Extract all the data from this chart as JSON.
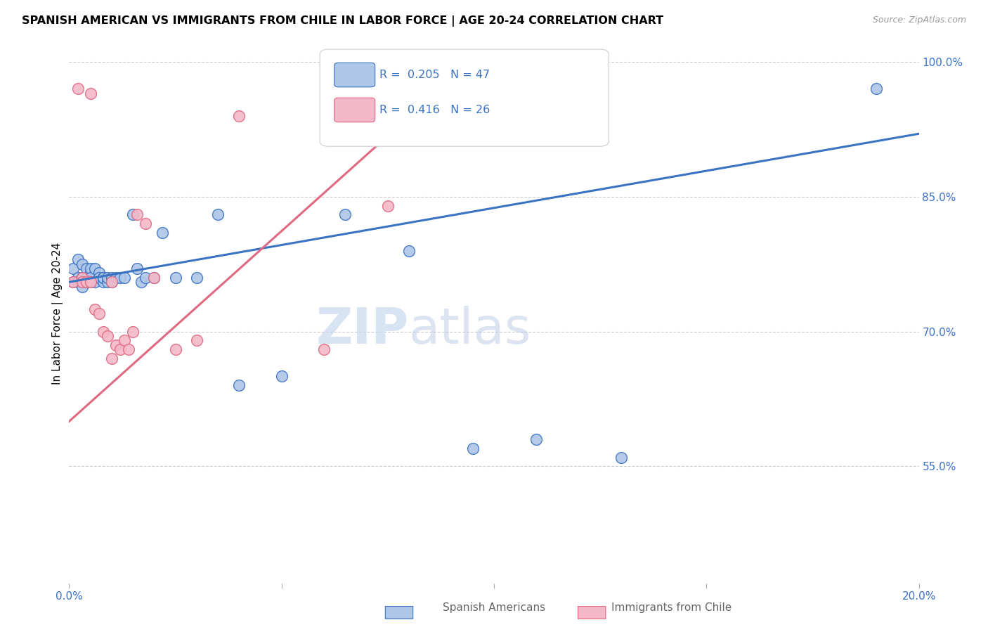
{
  "title": "SPANISH AMERICAN VS IMMIGRANTS FROM CHILE IN LABOR FORCE | AGE 20-24 CORRELATION CHART",
  "source": "Source: ZipAtlas.com",
  "ylabel": "In Labor Force | Age 20-24",
  "xlim": [
    0.0,
    0.2
  ],
  "ylim": [
    0.42,
    1.02
  ],
  "xticks": [
    0.0,
    0.05,
    0.1,
    0.15,
    0.2
  ],
  "yticks": [
    0.55,
    0.7,
    0.85,
    1.0
  ],
  "xticklabels": [
    "0.0%",
    "",
    "",
    "",
    "20.0%"
  ],
  "yticklabels": [
    "55.0%",
    "70.0%",
    "85.0%",
    "100.0%"
  ],
  "blue_R": 0.205,
  "blue_N": 47,
  "pink_R": 0.416,
  "pink_N": 26,
  "blue_color": "#aec6e8",
  "pink_color": "#f4b8c8",
  "blue_line_color": "#3a72c4",
  "pink_line_color": "#e06880",
  "watermark_zip": "ZIP",
  "watermark_atlas": "atlas",
  "blue_scatter_x": [
    0.001,
    0.001,
    0.002,
    0.002,
    0.002,
    0.003,
    0.003,
    0.003,
    0.003,
    0.004,
    0.004,
    0.004,
    0.005,
    0.005,
    0.005,
    0.005,
    0.006,
    0.006,
    0.007,
    0.007,
    0.008,
    0.008,
    0.008,
    0.009,
    0.009,
    0.01,
    0.01,
    0.011,
    0.012,
    0.013,
    0.015,
    0.016,
    0.017,
    0.018,
    0.02,
    0.022,
    0.025,
    0.03,
    0.035,
    0.04,
    0.05,
    0.065,
    0.08,
    0.095,
    0.11,
    0.13,
    0.19
  ],
  "blue_scatter_y": [
    0.755,
    0.77,
    0.76,
    0.755,
    0.78,
    0.76,
    0.775,
    0.76,
    0.75,
    0.755,
    0.77,
    0.76,
    0.765,
    0.77,
    0.755,
    0.76,
    0.755,
    0.77,
    0.765,
    0.76,
    0.755,
    0.76,
    0.76,
    0.755,
    0.76,
    0.76,
    0.755,
    0.76,
    0.76,
    0.76,
    0.83,
    0.77,
    0.755,
    0.76,
    0.76,
    0.81,
    0.76,
    0.76,
    0.83,
    0.64,
    0.65,
    0.83,
    0.79,
    0.57,
    0.58,
    0.56,
    0.97
  ],
  "pink_scatter_x": [
    0.001,
    0.002,
    0.003,
    0.003,
    0.004,
    0.005,
    0.005,
    0.006,
    0.007,
    0.008,
    0.009,
    0.01,
    0.01,
    0.011,
    0.012,
    0.013,
    0.014,
    0.015,
    0.016,
    0.018,
    0.02,
    0.025,
    0.03,
    0.04,
    0.06,
    0.075
  ],
  "pink_scatter_y": [
    0.755,
    0.97,
    0.76,
    0.755,
    0.755,
    0.755,
    0.965,
    0.725,
    0.72,
    0.7,
    0.695,
    0.755,
    0.67,
    0.685,
    0.68,
    0.69,
    0.68,
    0.7,
    0.83,
    0.82,
    0.76,
    0.68,
    0.69,
    0.94,
    0.68,
    0.84
  ]
}
